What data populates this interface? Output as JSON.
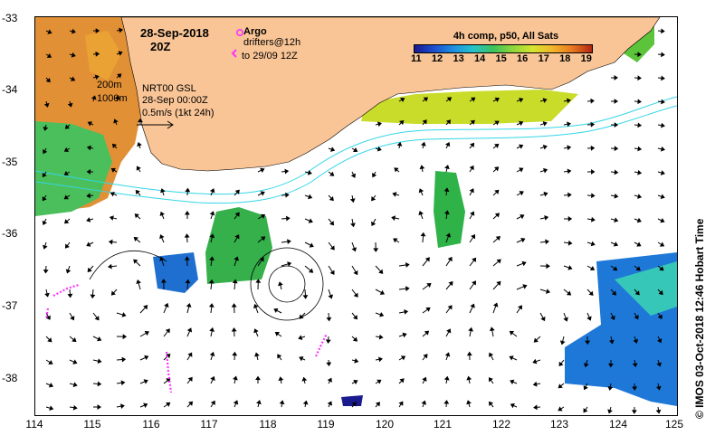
{
  "map": {
    "date_title": "28-Sep-2018",
    "time_title": "20Z",
    "argo_label": "Argo",
    "drifters_label": "drifters@12h",
    "drifters_range": "to 29/09 12Z",
    "contour_200": "200m",
    "contour_1000": "1000m",
    "source_line1": "NRT00 GSL",
    "source_line2": "28-Sep 00:00Z",
    "scale_label": "0.5m/s (1kt 24h)",
    "colorbar_title": "4h comp, p50, All Sats",
    "colorbar_ticks": [
      "11",
      "12",
      "13",
      "14",
      "15",
      "16",
      "17",
      "18",
      "19"
    ],
    "credit": "© IMOS 03-Oct-2018 12:46 Hobart Time",
    "x_ticks": [
      "114",
      "115",
      "116",
      "117",
      "118",
      "119",
      "120",
      "121",
      "122",
      "123",
      "124",
      "125"
    ],
    "y_ticks": [
      "-33",
      "-34",
      "-35",
      "-36",
      "-37",
      "-38"
    ]
  },
  "colors": {
    "land": "#f9c596",
    "shelf_contour": "#33d6e6",
    "drifter": "#ff33ff",
    "arrow": "#000000"
  }
}
